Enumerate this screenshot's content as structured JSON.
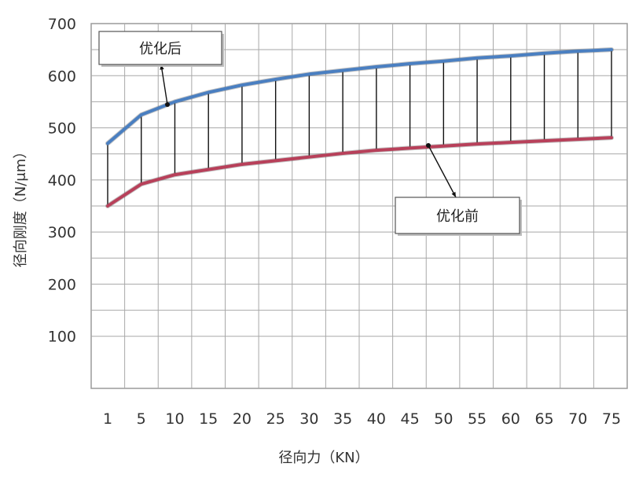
{
  "chart_data": {
    "type": "line",
    "title": "",
    "xlabel": "径向力（KN）",
    "ylabel": "径向刚度（N/μm）",
    "x": [
      1,
      5,
      10,
      15,
      20,
      25,
      30,
      35,
      40,
      45,
      50,
      55,
      60,
      65,
      70,
      75
    ],
    "x_tick_labels": [
      "1",
      "5",
      "10",
      "15",
      "20",
      "25",
      "30",
      "35",
      "40",
      "45",
      "50",
      "55",
      "60",
      "65",
      "70",
      "75"
    ],
    "y_ticks": [
      100,
      200,
      300,
      400,
      500,
      600,
      700
    ],
    "ylim": [
      0,
      700
    ],
    "grid": true,
    "series": [
      {
        "name": "优化后",
        "color": "#4a7fc1",
        "values": [
          470,
          525,
          550,
          568,
          582,
          593,
          603,
          610,
          617,
          623,
          628,
          634,
          638,
          643,
          647,
          650
        ]
      },
      {
        "name": "优化前",
        "color": "#b8405a",
        "values": [
          350,
          392,
          410,
          420,
          430,
          437,
          444,
          451,
          457,
          461,
          465,
          469,
          472,
          475,
          478,
          481
        ]
      }
    ],
    "annotations": [
      {
        "text": "优化后",
        "series": 0,
        "x": 10
      },
      {
        "text": "优化前",
        "series": 1,
        "x": 50
      }
    ]
  }
}
